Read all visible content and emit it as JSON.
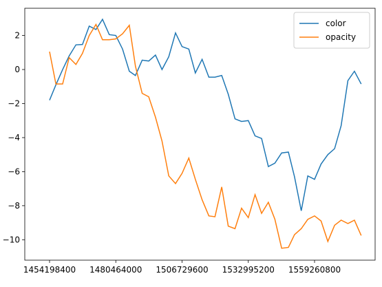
{
  "chart_data": {
    "type": "line",
    "x": [
      1454198400,
      1456704000,
      1459382400,
      1461974400,
      1464652800,
      1467244800,
      1469923200,
      1472601600,
      1475193600,
      1477872000,
      1480464000,
      1483142400,
      1485820800,
      1488240000,
      1490918400,
      1493510400,
      1496188800,
      1498780800,
      1501459200,
      1504137600,
      1506729600,
      1509408000,
      1512000000,
      1514678400,
      1517356800,
      1519776000,
      1522454400,
      1525046400,
      1527724800,
      1530316800,
      1532995200,
      1535673600,
      1538265600,
      1540944000,
      1543536000,
      1546214400,
      1548892800,
      1551312000,
      1553990400,
      1556582400,
      1559260800,
      1561852800,
      1564531200,
      1567209600,
      1569801600,
      1572480000,
      1575072000,
      1577750400
    ],
    "series": [
      {
        "name": "color",
        "color": "#1f77b4",
        "values": [
          -1.8,
          -0.9,
          0.0,
          0.8,
          1.45,
          1.47,
          2.55,
          2.35,
          2.95,
          2.05,
          2.0,
          1.2,
          -0.1,
          -0.35,
          0.55,
          0.5,
          0.85,
          0.0,
          0.75,
          2.15,
          1.35,
          1.2,
          -0.2,
          0.6,
          -0.45,
          -0.45,
          -0.35,
          -1.45,
          -2.9,
          -3.05,
          -3.0,
          -3.9,
          -4.05,
          -5.7,
          -5.5,
          -4.9,
          -4.85,
          -6.3,
          -8.3,
          -6.25,
          -6.45,
          -5.55,
          -5.0,
          -4.65,
          -3.3,
          -0.65,
          -0.1,
          -0.85
        ]
      },
      {
        "name": "opacity",
        "color": "#ff7f0e",
        "values": [
          1.05,
          -0.85,
          -0.85,
          0.7,
          0.3,
          0.95,
          2.0,
          2.65,
          1.75,
          1.75,
          1.8,
          2.1,
          2.6,
          0.2,
          -1.4,
          -1.6,
          -2.8,
          -4.2,
          -6.25,
          -6.7,
          -6.1,
          -5.2,
          -6.45,
          -7.65,
          -8.6,
          -8.65,
          -6.9,
          -9.2,
          -9.35,
          -8.15,
          -8.7,
          -7.35,
          -8.45,
          -7.8,
          -8.8,
          -10.5,
          -10.45,
          -9.7,
          -9.35,
          -8.8,
          -8.6,
          -8.9,
          -10.1,
          -9.15,
          -8.85,
          -9.05,
          -8.85,
          -9.75
        ]
      }
    ],
    "xlim": [
      1444374400,
      1583274400
    ],
    "xticks": [
      1454198400,
      1480464000,
      1506729600,
      1532995200,
      1559260800
    ],
    "ylim": [
      -11.2,
      3.6
    ],
    "yticks": [
      {
        "value": 2,
        "label": "2"
      },
      {
        "value": 0,
        "label": "0"
      },
      {
        "value": -2,
        "label": "−2"
      },
      {
        "value": -4,
        "label": "−4"
      },
      {
        "value": -6,
        "label": "−6"
      },
      {
        "value": -8,
        "label": "−8"
      },
      {
        "value": -10,
        "label": "−10"
      }
    ],
    "legend": "upper right"
  }
}
